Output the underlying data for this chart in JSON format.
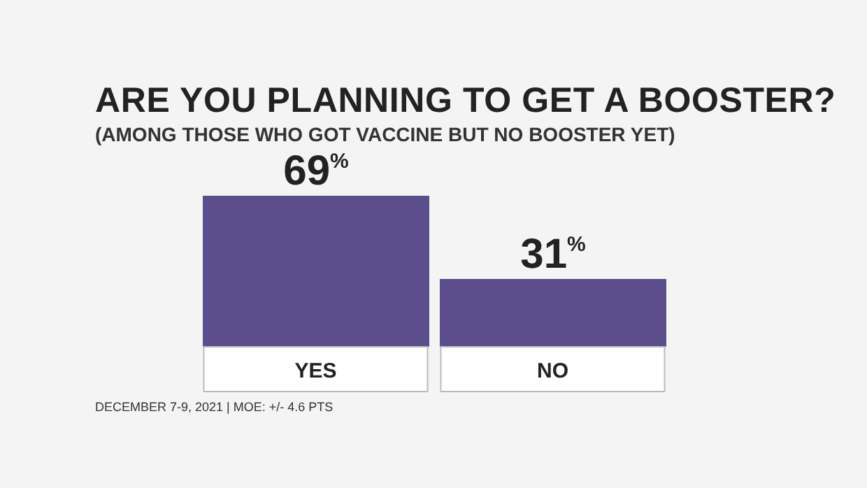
{
  "chart_data": {
    "type": "bar",
    "title": "ARE YOU PLANNING TO GET A BOOSTER?",
    "subtitle": "(AMONG THOSE WHO GOT VACCINE BUT NO BOOSTER YET)",
    "categories": [
      "YES",
      "NO"
    ],
    "values": [
      69,
      31
    ],
    "color": "#5b4e8c",
    "value_labels": [
      "69$^{%}$",
      "31$^{%}$"
    ],
    "annotations": [
      "DECEMBER 7-9, 2021 | MOE: +/- 4.6 PTS"
    ]
  }
}
